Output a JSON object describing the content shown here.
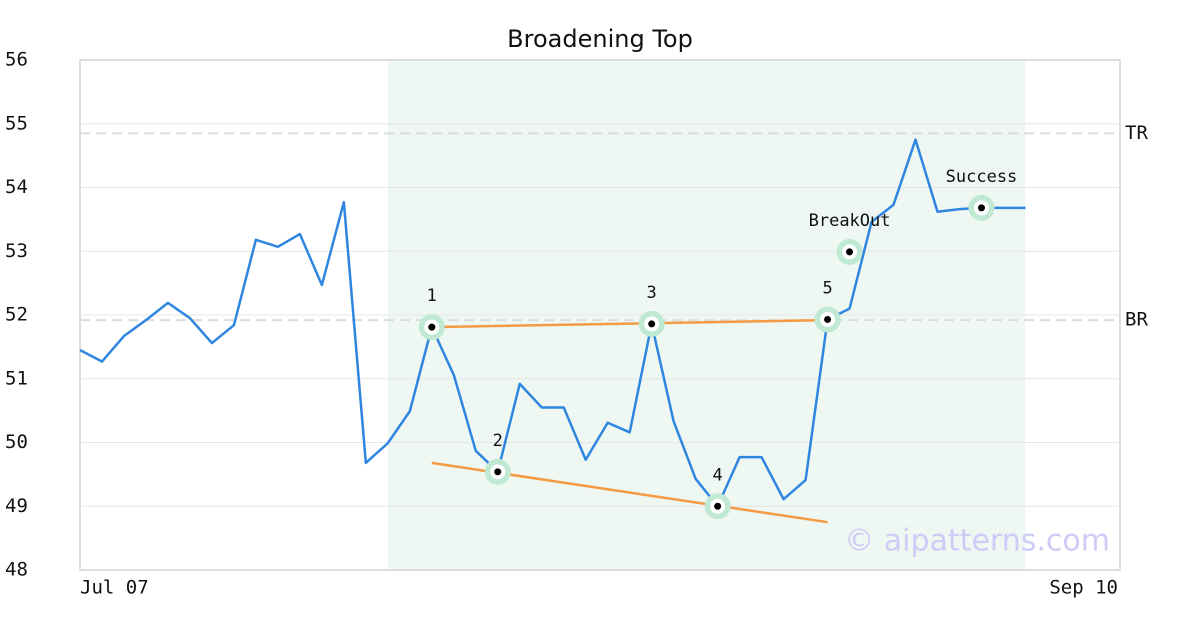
{
  "chart_data": {
    "type": "line",
    "title": "Broadening Top",
    "x": [
      0,
      1,
      2,
      3,
      4,
      5,
      6,
      7,
      8,
      9,
      10,
      11,
      12,
      13,
      14,
      15,
      16,
      17,
      18,
      19,
      20,
      21,
      22,
      23,
      24,
      25,
      26,
      27,
      28,
      29,
      30,
      31,
      32,
      33,
      34,
      35,
      36,
      37,
      38,
      39,
      40,
      41,
      42,
      43
    ],
    "values": [
      51.45,
      51.27,
      51.67,
      51.92,
      52.19,
      51.95,
      51.56,
      51.84,
      53.18,
      53.07,
      53.27,
      52.47,
      53.77,
      49.68,
      49.99,
      50.49,
      51.81,
      51.06,
      49.87,
      49.54,
      50.92,
      50.55,
      50.55,
      49.73,
      50.31,
      50.16,
      51.86,
      50.33,
      49.43,
      49.0,
      49.77,
      49.77,
      49.11,
      49.41,
      51.93,
      52.1,
      53.46,
      53.73,
      54.75,
      53.62,
      53.66,
      53.68,
      53.68,
      53.68
    ],
    "color": "#2f86e0",
    "xlim": [
      0,
      47.3
    ],
    "xticks": [
      {
        "value": 0,
        "label": "Jul 07"
      },
      {
        "value": 47.3,
        "label": "Sep 10"
      }
    ],
    "ylim": [
      48,
      56
    ],
    "yticks": [
      48,
      49,
      50,
      51,
      52,
      53,
      54,
      55,
      56
    ],
    "grid": true,
    "highlight_range": [
      14,
      43
    ],
    "levels": [
      {
        "label": "TR",
        "value": 54.85
      },
      {
        "label": "BR",
        "value": 51.92
      }
    ],
    "trendlines": [
      {
        "x": [
          16,
          34
        ],
        "y": [
          51.81,
          51.92
        ],
        "color": "#f59a42"
      },
      {
        "x": [
          16,
          34
        ],
        "y": [
          49.68,
          48.75
        ],
        "color": "#f59a42"
      }
    ],
    "markers": [
      {
        "label": "1",
        "x": 16,
        "y": 51.81
      },
      {
        "label": "2",
        "x": 19,
        "y": 49.54
      },
      {
        "label": "3",
        "x": 26,
        "y": 51.86
      },
      {
        "label": "4",
        "x": 29,
        "y": 49.0
      },
      {
        "label": "5",
        "x": 34,
        "y": 51.93
      },
      {
        "label": "BreakOut",
        "x": 35,
        "y": 52.99
      },
      {
        "label": "Success",
        "x": 41,
        "y": 53.68
      }
    ],
    "watermark": "© aipatterns.com"
  }
}
